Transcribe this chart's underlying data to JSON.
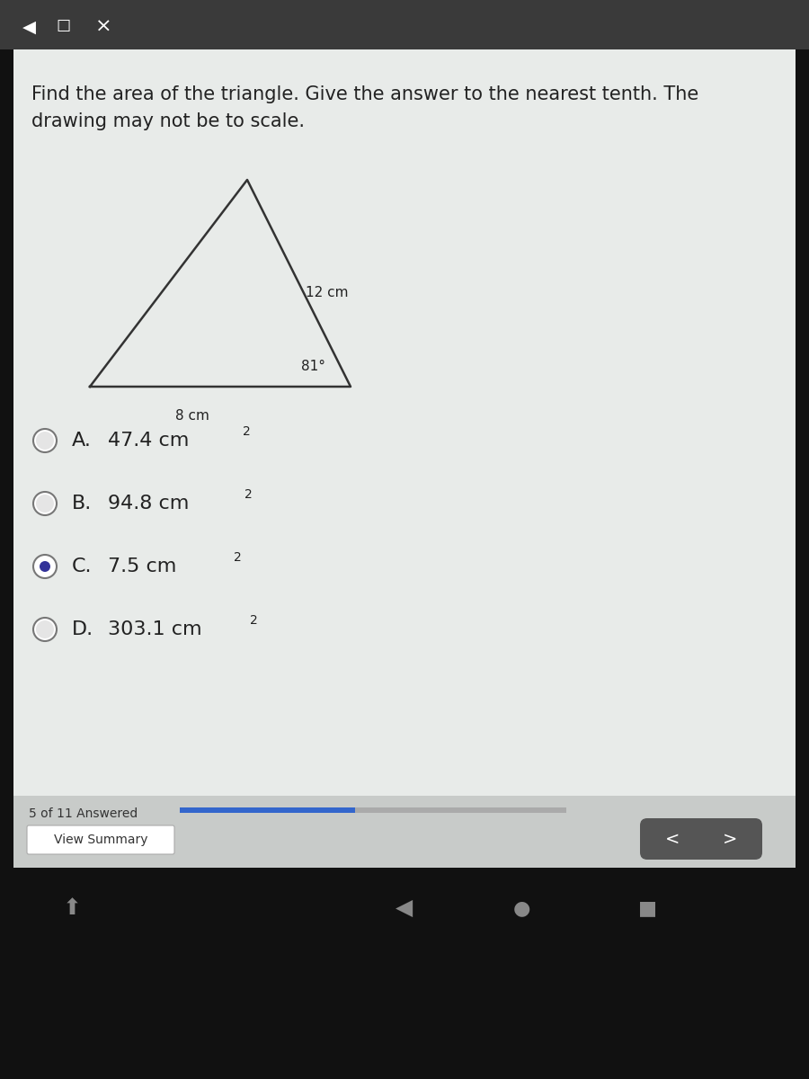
{
  "title_line1": "Find the area of the triangle. Give the answer to the nearest tenth. The",
  "title_line2": "drawing may not be to scale.",
  "label_12cm": "12 cm",
  "label_8cm": "8 cm",
  "label_81deg": "81°",
  "choices": [
    {
      "letter": "A.",
      "text": "47.4 cm",
      "superscript": "2",
      "selected": false
    },
    {
      "letter": "B.",
      "text": "94.8 cm",
      "superscript": "2",
      "selected": false
    },
    {
      "letter": "C.",
      "text": "7.5 cm",
      "superscript": "2",
      "selected": true
    },
    {
      "letter": "D.",
      "text": "303.1 cm",
      "superscript": "2",
      "selected": false
    }
  ],
  "progress_text": "5 of 11 Answered",
  "view_summary_text": "View Summary",
  "toolbar_color": "#3a3a3a",
  "bottom_bar_color": "#111111",
  "content_bg": "#d0d8d4",
  "radio_selected_color": "#222288",
  "radio_unselected_color": "#888888",
  "progress_bar_color": "#3366cc",
  "progress_bar_bg": "#aaaaaa",
  "nav_button_color": "#555555",
  "triangle_color": "#333333",
  "text_color": "#222222",
  "title_fontsize": 15,
  "choice_fontsize": 16,
  "label_fontsize": 11
}
